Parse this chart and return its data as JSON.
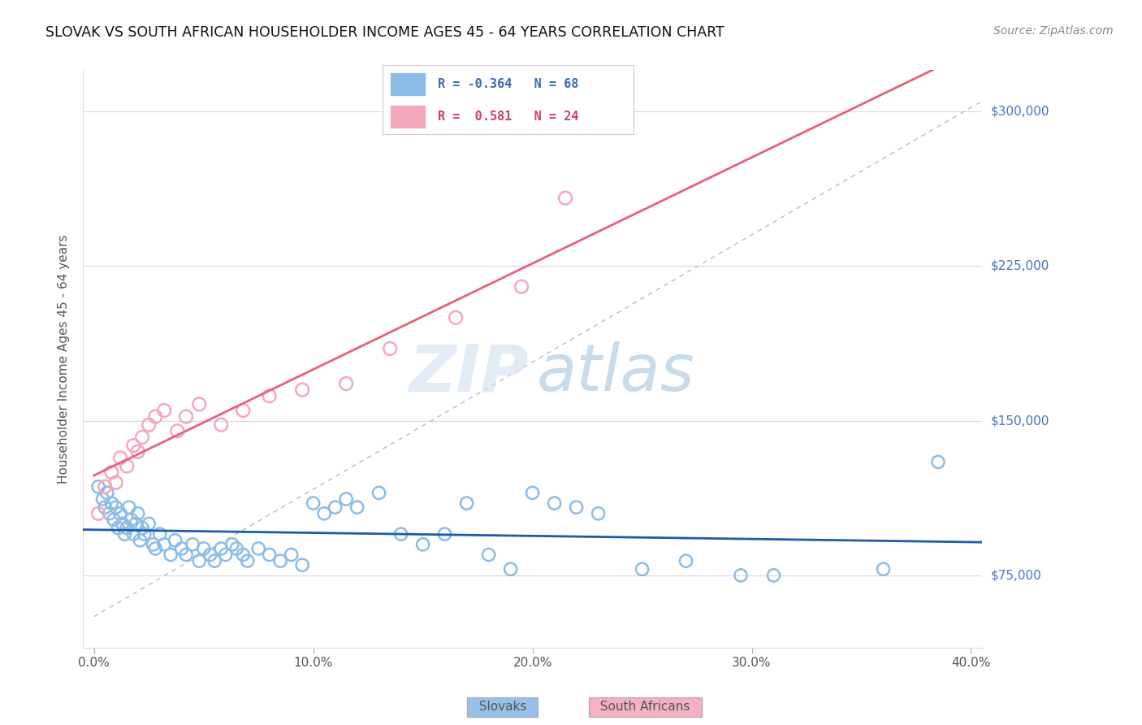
{
  "title": "SLOVAK VS SOUTH AFRICAN HOUSEHOLDER INCOME AGES 45 - 64 YEARS CORRELATION CHART",
  "source": "Source: ZipAtlas.com",
  "ylabel": "Householder Income Ages 45 - 64 years",
  "ylabel_ticks": [
    75000,
    150000,
    225000,
    300000
  ],
  "ylabel_labels": [
    "$75,000",
    "$150,000",
    "$225,000",
    "$300,000"
  ],
  "ylim": [
    40000,
    320000
  ],
  "xlim": [
    -0.005,
    0.405
  ],
  "xlabel_ticks": [
    0.0,
    0.1,
    0.2,
    0.3,
    0.4
  ],
  "xlabel_labels": [
    "0.0%",
    "10.0%",
    "20.0%",
    "30.0%",
    "40.0%"
  ],
  "slovak_R": -0.364,
  "slovak_N": 68,
  "sa_R": 0.581,
  "sa_N": 24,
  "slovak_color": "#8bbce8",
  "sa_color": "#f4a8bc",
  "slovak_line_color": "#1a5ca8",
  "sa_line_color": "#e8607a",
  "ref_line_color": "#b8b8c8",
  "background_color": "#ffffff",
  "grid_color": "#d8d8e8",
  "slovak_x": [
    0.002,
    0.004,
    0.005,
    0.006,
    0.007,
    0.008,
    0.009,
    0.01,
    0.011,
    0.012,
    0.013,
    0.014,
    0.015,
    0.016,
    0.017,
    0.018,
    0.019,
    0.02,
    0.021,
    0.022,
    0.023,
    0.025,
    0.027,
    0.028,
    0.03,
    0.032,
    0.035,
    0.037,
    0.04,
    0.042,
    0.045,
    0.048,
    0.05,
    0.053,
    0.055,
    0.058,
    0.06,
    0.063,
    0.065,
    0.068,
    0.07,
    0.075,
    0.08,
    0.085,
    0.09,
    0.095,
    0.1,
    0.105,
    0.11,
    0.115,
    0.12,
    0.13,
    0.14,
    0.15,
    0.16,
    0.17,
    0.18,
    0.19,
    0.2,
    0.21,
    0.22,
    0.23,
    0.25,
    0.27,
    0.295,
    0.31,
    0.36,
    0.385
  ],
  "slovak_y": [
    118000,
    112000,
    108000,
    115000,
    105000,
    110000,
    102000,
    108000,
    98000,
    105000,
    100000,
    95000,
    98000,
    108000,
    102000,
    95000,
    100000,
    105000,
    92000,
    98000,
    95000,
    100000,
    90000,
    88000,
    95000,
    90000,
    85000,
    92000,
    88000,
    85000,
    90000,
    82000,
    88000,
    85000,
    82000,
    88000,
    85000,
    90000,
    88000,
    85000,
    82000,
    88000,
    85000,
    82000,
    85000,
    80000,
    110000,
    105000,
    108000,
    112000,
    108000,
    115000,
    95000,
    90000,
    95000,
    110000,
    85000,
    78000,
    115000,
    110000,
    108000,
    105000,
    78000,
    82000,
    75000,
    75000,
    78000,
    130000
  ],
  "sa_x": [
    0.002,
    0.005,
    0.008,
    0.01,
    0.012,
    0.015,
    0.018,
    0.02,
    0.022,
    0.025,
    0.028,
    0.032,
    0.038,
    0.042,
    0.048,
    0.058,
    0.068,
    0.08,
    0.095,
    0.115,
    0.135,
    0.165,
    0.195,
    0.215
  ],
  "sa_y": [
    105000,
    118000,
    125000,
    120000,
    132000,
    128000,
    138000,
    135000,
    142000,
    148000,
    152000,
    155000,
    145000,
    152000,
    158000,
    148000,
    155000,
    162000,
    165000,
    168000,
    185000,
    200000,
    215000,
    258000
  ],
  "legend_slovak_text": "R = -0.364   N = 68",
  "legend_sa_text": "R =  0.581   N = 24"
}
